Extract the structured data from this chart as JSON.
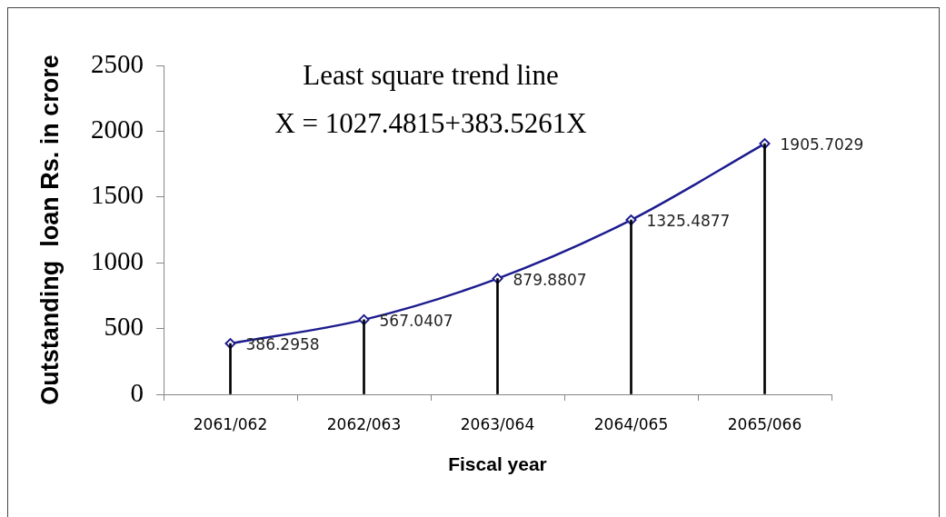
{
  "chart_data": {
    "type": "line",
    "xlabel": "Fiscal year",
    "ylabel": "Outstanding  loan Rs. in crore",
    "annotations": [
      "Least square trend line",
      "X = 1027.4815+383.5261X"
    ],
    "categories": [
      "2061/062",
      "2062/063",
      "2063/064",
      "2064/065",
      "2065/066"
    ],
    "series": [
      {
        "color": "#1c1c8e",
        "values": [
          386.2958,
          567.0407,
          879.8807,
          1325.4877,
          1905.7029
        ],
        "value_labels": [
          "386.2958",
          "567.0407",
          "879.8807",
          "1325.4877",
          "1905.7029"
        ]
      },
      {
        "type": "bar",
        "color": "#000000",
        "values": [
          386.2958,
          567.0407,
          879.8807,
          1325.4877,
          1905.7029
        ]
      }
    ],
    "ylim": [
      0,
      2500
    ],
    "yticks": [
      0,
      500,
      1000,
      1500,
      2000,
      2500
    ],
    "marker": "diamond",
    "line_style": "solid"
  }
}
